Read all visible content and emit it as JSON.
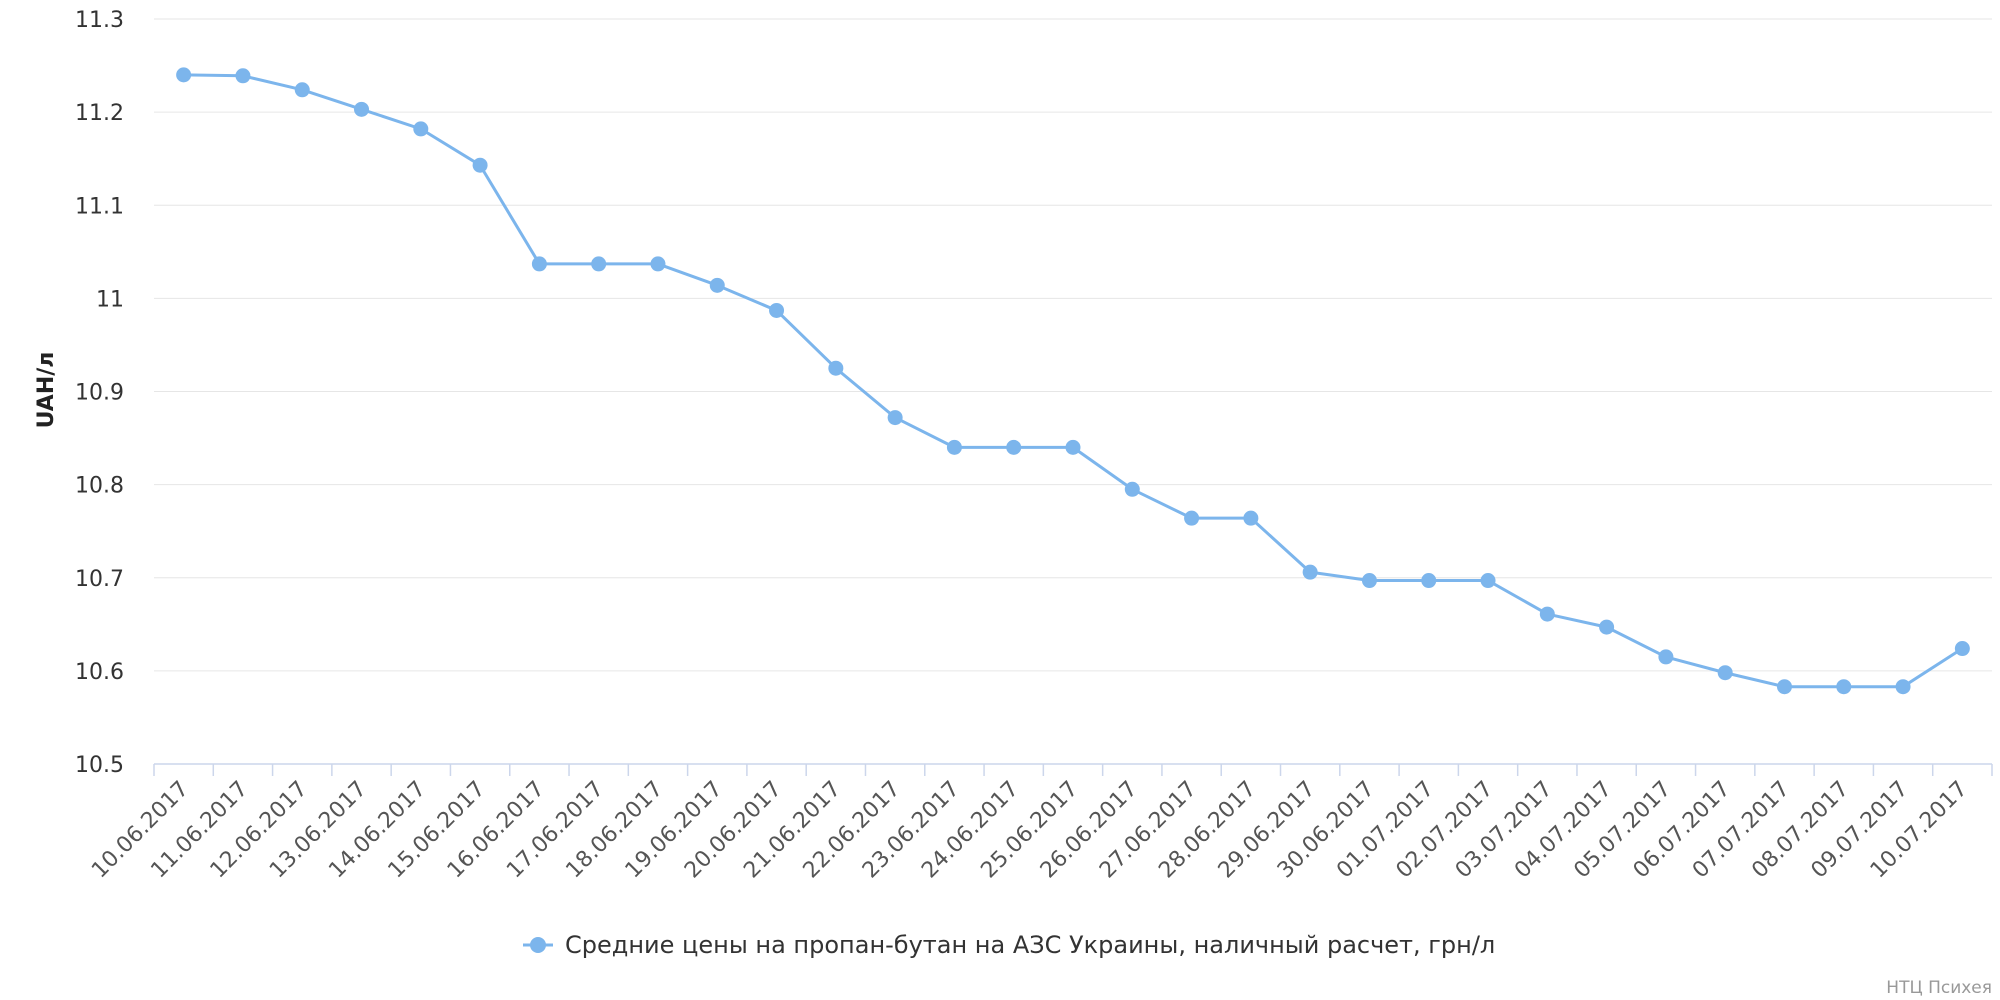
{
  "chart_data": {
    "type": "line",
    "ylabel": "UAH/л",
    "ylim": [
      10.5,
      11.3
    ],
    "yticks": [
      "10.5",
      "10.6",
      "10.7",
      "10.8",
      "10.9",
      "11",
      "11.1",
      "11.2",
      "11.3"
    ],
    "grid": true,
    "legend_position": "bottom-center",
    "categories": [
      "10.06.2017",
      "11.06.2017",
      "12.06.2017",
      "13.06.2017",
      "14.06.2017",
      "15.06.2017",
      "16.06.2017",
      "17.06.2017",
      "18.06.2017",
      "19.06.2017",
      "20.06.2017",
      "21.06.2017",
      "22.06.2017",
      "23.06.2017",
      "24.06.2017",
      "25.06.2017",
      "26.06.2017",
      "27.06.2017",
      "28.06.2017",
      "29.06.2017",
      "30.06.2017",
      "01.07.2017",
      "02.07.2017",
      "03.07.2017",
      "04.07.2017",
      "05.07.2017",
      "06.07.2017",
      "07.07.2017",
      "08.07.2017",
      "09.07.2017",
      "10.07.2017"
    ],
    "series": [
      {
        "name": "Средние цены на пропан-бутан на АЗС Украины, наличный расчет, грн/л",
        "color": "#7cb5ec",
        "values": [
          11.24,
          11.239,
          11.224,
          11.203,
          11.182,
          11.143,
          11.037,
          11.037,
          11.037,
          11.014,
          10.987,
          10.925,
          10.872,
          10.84,
          10.84,
          10.84,
          10.795,
          10.764,
          10.764,
          10.706,
          10.697,
          10.697,
          10.697,
          10.661,
          10.647,
          10.615,
          10.598,
          10.583,
          10.583,
          10.583,
          10.624
        ]
      }
    ],
    "credit": "НТЦ Психея"
  }
}
